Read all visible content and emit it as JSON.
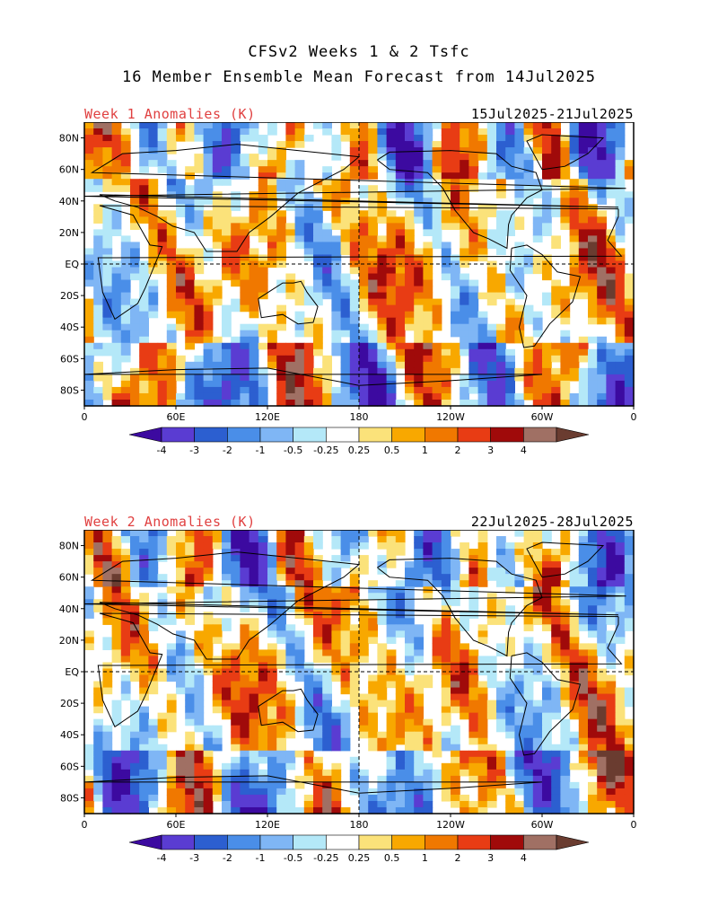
{
  "title": {
    "line1": "CFSv2 Weeks 1 & 2 Tsfc",
    "line2": "16 Member Ensemble Mean Forecast from 14Jul2025"
  },
  "panels": [
    {
      "label": "Week 1 Anomalies (K)",
      "date_range": "15Jul2025-21Jul2025",
      "lat_labels": [
        "80N",
        "60N",
        "40N",
        "20N",
        "EQ",
        "20S",
        "40S",
        "60S",
        "80S"
      ],
      "lon_labels": [
        "0",
        "60E",
        "120E",
        "180",
        "120W",
        "60W",
        "0"
      ]
    },
    {
      "label": "Week 2 Anomalies (K)",
      "date_range": "22Jul2025-28Jul2025",
      "lat_labels": [
        "80N",
        "60N",
        "40N",
        "20N",
        "EQ",
        "20S",
        "40S",
        "60S",
        "80S"
      ],
      "lon_labels": [
        "0",
        "60E",
        "120E",
        "180",
        "120W",
        "60W",
        "0"
      ]
    }
  ],
  "colorbar": {
    "tick_labels": [
      "-4",
      "-3",
      "-2",
      "-1",
      "-0.5",
      "-0.25",
      "0.25",
      "0.5",
      "1",
      "2",
      "3",
      "4"
    ],
    "colors": [
      "#3c0aa0",
      "#5a3cd2",
      "#2c5fd0",
      "#4a8ee8",
      "#7fb6f5",
      "#b4e8f8",
      "#ffffff",
      "#fbe27a",
      "#f8a800",
      "#f07800",
      "#e83c14",
      "#a00a0a",
      "#a07064",
      "#6a3c30"
    ]
  }
}
